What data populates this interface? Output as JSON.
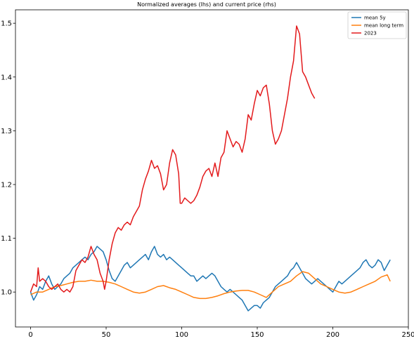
{
  "chart_data": {
    "type": "line",
    "title": "Normalized averages (lhs) and current price (rhs)",
    "xlabel": "",
    "ylabel": "",
    "xlim": [
      -10,
      250
    ],
    "ylim": [
      0.935,
      1.525
    ],
    "x_ticks": [
      0,
      50,
      100,
      150,
      200,
      250
    ],
    "y_ticks": [
      1.0,
      1.1,
      1.2,
      1.3,
      1.4,
      1.5
    ],
    "grid": false,
    "legend_position": "top-right",
    "series": [
      {
        "name": "mean 5y",
        "color": "#1f77b4",
        "points": [
          [
            0,
            1.0
          ],
          [
            2,
            0.985
          ],
          [
            4,
            0.995
          ],
          [
            6,
            1.01
          ],
          [
            8,
            1.005
          ],
          [
            10,
            1.02
          ],
          [
            12,
            1.03
          ],
          [
            14,
            1.015
          ],
          [
            16,
            1.005
          ],
          [
            18,
            1.01
          ],
          [
            20,
            1.015
          ],
          [
            22,
            1.025
          ],
          [
            24,
            1.03
          ],
          [
            26,
            1.035
          ],
          [
            28,
            1.045
          ],
          [
            30,
            1.05
          ],
          [
            32,
            1.055
          ],
          [
            34,
            1.06
          ],
          [
            36,
            1.065
          ],
          [
            38,
            1.06
          ],
          [
            40,
            1.07
          ],
          [
            42,
            1.075
          ],
          [
            44,
            1.085
          ],
          [
            46,
            1.08
          ],
          [
            48,
            1.075
          ],
          [
            50,
            1.06
          ],
          [
            52,
            1.04
          ],
          [
            54,
            1.025
          ],
          [
            56,
            1.02
          ],
          [
            58,
            1.03
          ],
          [
            60,
            1.04
          ],
          [
            62,
            1.05
          ],
          [
            64,
            1.055
          ],
          [
            66,
            1.045
          ],
          [
            68,
            1.05
          ],
          [
            70,
            1.055
          ],
          [
            72,
            1.06
          ],
          [
            74,
            1.065
          ],
          [
            76,
            1.07
          ],
          [
            78,
            1.06
          ],
          [
            80,
            1.075
          ],
          [
            82,
            1.085
          ],
          [
            84,
            1.07
          ],
          [
            86,
            1.065
          ],
          [
            88,
            1.07
          ],
          [
            90,
            1.06
          ],
          [
            92,
            1.065
          ],
          [
            94,
            1.06
          ],
          [
            96,
            1.055
          ],
          [
            98,
            1.05
          ],
          [
            100,
            1.045
          ],
          [
            102,
            1.04
          ],
          [
            104,
            1.035
          ],
          [
            106,
            1.03
          ],
          [
            108,
            1.03
          ],
          [
            110,
            1.02
          ],
          [
            112,
            1.025
          ],
          [
            114,
            1.03
          ],
          [
            116,
            1.025
          ],
          [
            118,
            1.03
          ],
          [
            120,
            1.035
          ],
          [
            122,
            1.03
          ],
          [
            124,
            1.02
          ],
          [
            126,
            1.01
          ],
          [
            128,
            1.005
          ],
          [
            130,
            1.0
          ],
          [
            132,
            1.005
          ],
          [
            134,
            1.0
          ],
          [
            136,
            0.995
          ],
          [
            138,
            0.99
          ],
          [
            140,
            0.985
          ],
          [
            142,
            0.975
          ],
          [
            144,
            0.965
          ],
          [
            146,
            0.97
          ],
          [
            148,
            0.975
          ],
          [
            150,
            0.975
          ],
          [
            152,
            0.97
          ],
          [
            154,
            0.98
          ],
          [
            156,
            0.985
          ],
          [
            158,
            0.99
          ],
          [
            160,
            1.0
          ],
          [
            162,
            1.01
          ],
          [
            164,
            1.015
          ],
          [
            166,
            1.02
          ],
          [
            168,
            1.025
          ],
          [
            170,
            1.03
          ],
          [
            172,
            1.04
          ],
          [
            174,
            1.045
          ],
          [
            176,
            1.055
          ],
          [
            178,
            1.045
          ],
          [
            180,
            1.035
          ],
          [
            182,
            1.025
          ],
          [
            184,
            1.02
          ],
          [
            186,
            1.015
          ],
          [
            188,
            1.02
          ],
          [
            190,
            1.025
          ],
          [
            192,
            1.02
          ],
          [
            194,
            1.015
          ],
          [
            196,
            1.01
          ],
          [
            198,
            1.005
          ],
          [
            200,
            1.0
          ],
          [
            202,
            1.01
          ],
          [
            204,
            1.02
          ],
          [
            206,
            1.015
          ],
          [
            208,
            1.02
          ],
          [
            210,
            1.025
          ],
          [
            212,
            1.03
          ],
          [
            214,
            1.035
          ],
          [
            216,
            1.04
          ],
          [
            218,
            1.045
          ],
          [
            220,
            1.055
          ],
          [
            222,
            1.06
          ],
          [
            224,
            1.05
          ],
          [
            226,
            1.045
          ],
          [
            228,
            1.05
          ],
          [
            230,
            1.06
          ],
          [
            232,
            1.055
          ],
          [
            234,
            1.04
          ],
          [
            236,
            1.05
          ],
          [
            238,
            1.06
          ]
        ]
      },
      {
        "name": "mean long term",
        "color": "#ff7f0e",
        "points": [
          [
            0,
            0.995
          ],
          [
            4,
            1.0
          ],
          [
            8,
            1.0
          ],
          [
            12,
            1.005
          ],
          [
            16,
            1.01
          ],
          [
            20,
            1.012
          ],
          [
            24,
            1.015
          ],
          [
            28,
            1.018
          ],
          [
            32,
            1.02
          ],
          [
            36,
            1.02
          ],
          [
            40,
            1.022
          ],
          [
            44,
            1.02
          ],
          [
            48,
            1.02
          ],
          [
            52,
            1.018
          ],
          [
            56,
            1.015
          ],
          [
            60,
            1.01
          ],
          [
            64,
            1.005
          ],
          [
            68,
            1.0
          ],
          [
            72,
            0.998
          ],
          [
            76,
            1.0
          ],
          [
            80,
            1.005
          ],
          [
            84,
            1.01
          ],
          [
            88,
            1.012
          ],
          [
            92,
            1.008
          ],
          [
            96,
            1.005
          ],
          [
            100,
            1.0
          ],
          [
            104,
            0.995
          ],
          [
            108,
            0.99
          ],
          [
            112,
            0.988
          ],
          [
            116,
            0.988
          ],
          [
            120,
            0.99
          ],
          [
            124,
            0.993
          ],
          [
            128,
            0.997
          ],
          [
            132,
            1.0
          ],
          [
            136,
            1.002
          ],
          [
            140,
            1.003
          ],
          [
            144,
            1.003
          ],
          [
            148,
            1.0
          ],
          [
            152,
            0.995
          ],
          [
            156,
            0.99
          ],
          [
            160,
            1.0
          ],
          [
            164,
            1.01
          ],
          [
            168,
            1.015
          ],
          [
            172,
            1.02
          ],
          [
            176,
            1.03
          ],
          [
            180,
            1.038
          ],
          [
            184,
            1.035
          ],
          [
            188,
            1.025
          ],
          [
            192,
            1.015
          ],
          [
            196,
            1.01
          ],
          [
            200,
            1.005
          ],
          [
            204,
            1.0
          ],
          [
            208,
            0.998
          ],
          [
            212,
            1.0
          ],
          [
            216,
            1.005
          ],
          [
            220,
            1.01
          ],
          [
            224,
            1.015
          ],
          [
            228,
            1.02
          ],
          [
            232,
            1.028
          ],
          [
            236,
            1.032
          ],
          [
            238,
            1.02
          ]
        ]
      },
      {
        "name": "2023",
        "color": "#e31a1c",
        "points": [
          [
            0,
            1.0
          ],
          [
            2,
            1.015
          ],
          [
            4,
            1.01
          ],
          [
            5,
            1.045
          ],
          [
            6,
            1.02
          ],
          [
            8,
            1.025
          ],
          [
            10,
            1.02
          ],
          [
            12,
            1.01
          ],
          [
            14,
            1.005
          ],
          [
            16,
            1.01
          ],
          [
            18,
            1.015
          ],
          [
            20,
            1.005
          ],
          [
            22,
            1.0
          ],
          [
            24,
            1.005
          ],
          [
            26,
            1.0
          ],
          [
            28,
            1.01
          ],
          [
            30,
            1.04
          ],
          [
            32,
            1.05
          ],
          [
            34,
            1.06
          ],
          [
            36,
            1.055
          ],
          [
            38,
            1.065
          ],
          [
            40,
            1.085
          ],
          [
            42,
            1.07
          ],
          [
            44,
            1.06
          ],
          [
            46,
            1.035
          ],
          [
            48,
            1.02
          ],
          [
            49,
            1.005
          ],
          [
            50,
            1.02
          ],
          [
            52,
            1.06
          ],
          [
            54,
            1.09
          ],
          [
            56,
            1.11
          ],
          [
            58,
            1.12
          ],
          [
            60,
            1.115
          ],
          [
            62,
            1.125
          ],
          [
            64,
            1.13
          ],
          [
            66,
            1.125
          ],
          [
            68,
            1.14
          ],
          [
            70,
            1.15
          ],
          [
            72,
            1.16
          ],
          [
            74,
            1.19
          ],
          [
            76,
            1.21
          ],
          [
            78,
            1.225
          ],
          [
            80,
            1.245
          ],
          [
            82,
            1.23
          ],
          [
            84,
            1.235
          ],
          [
            86,
            1.22
          ],
          [
            88,
            1.19
          ],
          [
            90,
            1.2
          ],
          [
            92,
            1.24
          ],
          [
            94,
            1.265
          ],
          [
            96,
            1.255
          ],
          [
            98,
            1.22
          ],
          [
            99,
            1.165
          ],
          [
            100,
            1.165
          ],
          [
            102,
            1.175
          ],
          [
            104,
            1.17
          ],
          [
            106,
            1.165
          ],
          [
            108,
            1.17
          ],
          [
            110,
            1.18
          ],
          [
            112,
            1.195
          ],
          [
            114,
            1.215
          ],
          [
            116,
            1.225
          ],
          [
            118,
            1.23
          ],
          [
            120,
            1.215
          ],
          [
            122,
            1.24
          ],
          [
            124,
            1.215
          ],
          [
            126,
            1.25
          ],
          [
            128,
            1.26
          ],
          [
            130,
            1.3
          ],
          [
            132,
            1.285
          ],
          [
            134,
            1.27
          ],
          [
            136,
            1.28
          ],
          [
            138,
            1.275
          ],
          [
            140,
            1.26
          ],
          [
            142,
            1.285
          ],
          [
            144,
            1.33
          ],
          [
            146,
            1.32
          ],
          [
            148,
            1.35
          ],
          [
            150,
            1.375
          ],
          [
            152,
            1.365
          ],
          [
            154,
            1.38
          ],
          [
            156,
            1.385
          ],
          [
            158,
            1.35
          ],
          [
            160,
            1.3
          ],
          [
            162,
            1.275
          ],
          [
            164,
            1.285
          ],
          [
            166,
            1.3
          ],
          [
            168,
            1.33
          ],
          [
            170,
            1.36
          ],
          [
            172,
            1.4
          ],
          [
            174,
            1.43
          ],
          [
            176,
            1.495
          ],
          [
            178,
            1.48
          ],
          [
            180,
            1.41
          ],
          [
            182,
            1.4
          ],
          [
            184,
            1.385
          ],
          [
            186,
            1.37
          ],
          [
            188,
            1.36
          ]
        ]
      }
    ]
  }
}
